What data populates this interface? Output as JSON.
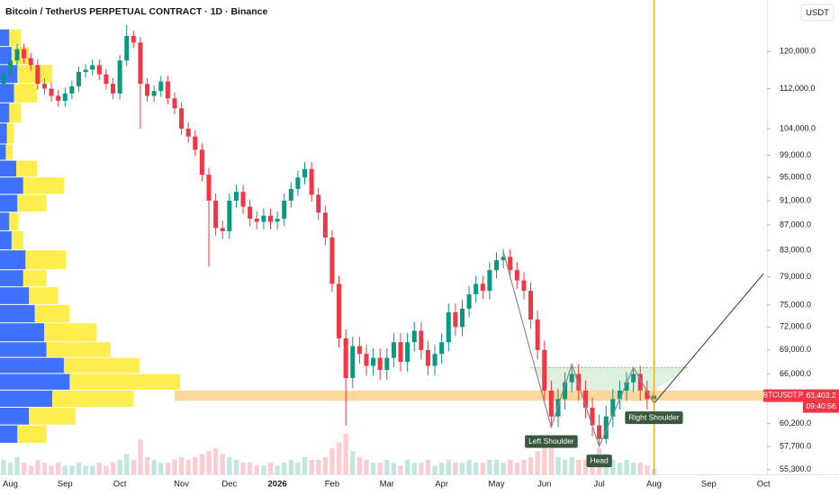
{
  "chart_data": {
    "type": "candlestick",
    "title": "Bitcoin / TetherUS PERPETUAL CONTRACT · 1D · Binance",
    "unit": "USDT",
    "log_scale": true,
    "grid": false,
    "colors": {
      "up": "#089981",
      "down": "#f23645",
      "profile_buy": "#2962ff",
      "profile_sell": "#ffeb3b",
      "zone": "#ffb74d",
      "pattern": "#8a8a8a",
      "projection": "#333333",
      "current": "#ff9800",
      "area": "#c8e6c9",
      "label_bg": "#38593f"
    },
    "categories": [
      null,
      "Aug",
      null,
      null,
      null,
      null,
      null,
      null,
      null,
      "Sep",
      null,
      null,
      null,
      null,
      null,
      null,
      null,
      "Oct",
      null,
      null,
      null,
      null,
      null,
      null,
      null,
      null,
      "Nov",
      null,
      null,
      null,
      null,
      null,
      null,
      "Dec",
      null,
      null,
      null,
      null,
      null,
      null,
      "2026",
      null,
      null,
      null,
      null,
      null,
      null,
      null,
      "Feb",
      null,
      null,
      null,
      null,
      null,
      null,
      null,
      "Mar",
      null,
      null,
      null,
      null,
      null,
      null,
      null,
      "Apr",
      null,
      null,
      null,
      null,
      null,
      null,
      null,
      "May",
      null,
      null,
      null,
      null,
      null,
      null,
      "Jun",
      null,
      null,
      null,
      null,
      null,
      null,
      null,
      "Jul",
      null,
      null,
      null,
      null,
      null,
      null,
      null,
      "Aug",
      null,
      null,
      null,
      null,
      null,
      null,
      null,
      "Sep",
      null,
      null,
      null,
      null,
      null,
      null,
      null,
      "Oct"
    ],
    "open": [
      113000,
      115000,
      118000,
      120500,
      118500,
      117000,
      113000,
      112000,
      110500,
      109500,
      111000,
      112500,
      115500,
      116000,
      117000,
      115000,
      113000,
      111000,
      118000,
      123500,
      122000,
      113000,
      110500,
      111500,
      113500,
      110000,
      108000,
      104000,
      102500,
      100000,
      95500,
      91000,
      86500,
      86000,
      91000,
      92500,
      90000,
      88000,
      87500,
      88500,
      87500,
      88000,
      91000,
      93000,
      95000,
      96500,
      92000,
      89000,
      85000,
      78000,
      70500,
      65500,
      69500,
      68500,
      67000,
      68000,
      66500,
      68000,
      70000,
      67500,
      70000,
      71500,
      69000,
      67000,
      68500,
      70000,
      74000,
      72000,
      74500,
      76500,
      78000,
      77000,
      80000,
      81500,
      82000,
      80000,
      78500,
      77000,
      73000,
      69000,
      64000,
      61000,
      63000,
      65000,
      66000,
      64000,
      62000,
      60000,
      58500,
      61000,
      63000,
      64000,
      65000,
      66000,
      64000,
      63000,
      null,
      null,
      null,
      null,
      null,
      null,
      null,
      null,
      null,
      null,
      null,
      null,
      null,
      null,
      null,
      null
    ],
    "high": [
      116200,
      119200,
      121700,
      121700,
      119700,
      118200,
      114200,
      113200,
      111700,
      112200,
      113700,
      116700,
      117200,
      118200,
      118200,
      116200,
      114200,
      119200,
      126000,
      124700,
      123200,
      114200,
      112700,
      114700,
      114700,
      111200,
      109200,
      105200,
      103700,
      101200,
      96700,
      92200,
      87700,
      92200,
      93700,
      93700,
      91200,
      89200,
      89700,
      89700,
      89200,
      92200,
      94200,
      96200,
      97700,
      97700,
      93200,
      90200,
      86200,
      79200,
      71700,
      70700,
      70700,
      69700,
      69200,
      69200,
      69200,
      71200,
      71200,
      71200,
      72700,
      72700,
      70200,
      69700,
      71200,
      75200,
      75200,
      75700,
      77700,
      79200,
      79200,
      81200,
      82700,
      83200,
      83200,
      81200,
      79700,
      78200,
      74200,
      70200,
      65200,
      64200,
      66200,
      67200,
      67200,
      65200,
      63200,
      61200,
      62200,
      64200,
      65200,
      66200,
      66800,
      67000,
      65200,
      64400,
      null,
      null,
      null,
      null,
      null,
      null,
      null,
      null,
      null,
      null,
      null,
      null,
      null,
      null,
      null,
      null
    ],
    "low": [
      111800,
      113800,
      116800,
      117300,
      115800,
      111800,
      110800,
      109300,
      108300,
      108300,
      109800,
      111300,
      114300,
      114800,
      113800,
      111800,
      109800,
      109800,
      116800,
      120800,
      104000,
      109300,
      109300,
      110300,
      108800,
      106800,
      102800,
      101300,
      98800,
      94300,
      80500,
      85300,
      84800,
      84800,
      89800,
      88800,
      86800,
      86300,
      86300,
      86300,
      86300,
      86800,
      89800,
      91800,
      93800,
      90800,
      87800,
      83800,
      76800,
      69300,
      60000,
      64300,
      67300,
      65800,
      65800,
      65300,
      65300,
      66800,
      66300,
      66300,
      68800,
      67800,
      65800,
      65800,
      67300,
      68800,
      70800,
      70800,
      73300,
      75300,
      75800,
      75800,
      78800,
      80300,
      78800,
      77300,
      75800,
      71800,
      67800,
      62800,
      59800,
      59800,
      61800,
      63800,
      62800,
      60800,
      58800,
      57700,
      58000,
      59800,
      61800,
      62800,
      63800,
      62800,
      61800,
      62500,
      null,
      null,
      null,
      null,
      null,
      null,
      null,
      null,
      null,
      null,
      null,
      null,
      null,
      null,
      null,
      null
    ],
    "close": [
      115000,
      118000,
      120500,
      118500,
      117000,
      113000,
      112000,
      110500,
      109500,
      111000,
      112500,
      115500,
      116000,
      117000,
      115000,
      113000,
      111000,
      118000,
      123500,
      122000,
      113000,
      110500,
      111500,
      113500,
      110000,
      108000,
      104000,
      102500,
      100000,
      95500,
      91000,
      86500,
      86000,
      91000,
      92500,
      90000,
      88000,
      87500,
      88500,
      87500,
      88000,
      91000,
      93000,
      95000,
      96500,
      92000,
      89000,
      85000,
      78000,
      70500,
      65500,
      69500,
      68500,
      67000,
      68000,
      66500,
      68000,
      70000,
      67500,
      70000,
      71500,
      69000,
      67000,
      68500,
      70000,
      74000,
      72000,
      74500,
      76500,
      78000,
      77000,
      80000,
      81500,
      82000,
      80000,
      78500,
      77000,
      73000,
      69000,
      64000,
      61000,
      63000,
      65000,
      66000,
      64000,
      62000,
      60000,
      58500,
      61000,
      63000,
      64000,
      65000,
      66000,
      64000,
      63000,
      63403.2,
      null,
      null,
      null,
      null,
      null,
      null,
      null,
      null,
      null,
      null,
      null,
      null,
      null,
      null,
      null,
      null
    ],
    "volume": [
      5,
      4,
      6,
      4,
      3,
      5,
      4,
      3,
      4,
      3,
      3,
      4,
      3,
      3,
      4,
      3,
      4,
      5,
      7,
      5,
      12,
      6,
      5,
      4,
      4,
      5,
      6,
      5,
      6,
      7,
      8,
      9,
      7,
      6,
      5,
      4,
      4,
      3,
      3,
      4,
      3,
      4,
      5,
      4,
      6,
      5,
      5,
      6,
      9,
      11,
      14,
      8,
      6,
      5,
      4,
      4,
      5,
      4,
      3,
      5,
      4,
      4,
      5,
      3,
      4,
      5,
      4,
      4,
      5,
      4,
      4,
      5,
      5,
      4,
      5,
      4,
      5,
      6,
      8,
      10,
      9,
      6,
      5,
      6,
      5,
      5,
      6,
      9,
      7,
      5,
      4,
      5,
      4,
      4,
      3,
      2,
      null,
      null,
      null,
      null,
      null,
      null,
      null,
      null,
      null,
      null,
      null,
      null,
      null,
      null,
      null,
      null
    ],
    "ylim": [
      54800,
      132000
    ],
    "yticks": [
      {
        "value": 55300,
        "label": "55,300.0"
      },
      {
        "value": 57700,
        "label": "57,700.0"
      },
      {
        "value": 60200,
        "label": "60,200.0"
      },
      {
        "value": 66000,
        "label": "66,000.0"
      },
      {
        "value": 69000,
        "label": "69,000.0"
      },
      {
        "value": 72000,
        "label": "72,000.0"
      },
      {
        "value": 75000,
        "label": "75,000.0"
      },
      {
        "value": 79000,
        "label": "79,000.0"
      },
      {
        "value": 83000,
        "label": "83,000.0"
      },
      {
        "value": 87000,
        "label": "87,000.0"
      },
      {
        "value": 91000,
        "label": "91,000.0"
      },
      {
        "value": 95000,
        "label": "95,000.0"
      },
      {
        "value": 99000,
        "label": "99,000.0"
      },
      {
        "value": 104000,
        "label": "104,000.0"
      },
      {
        "value": 112000,
        "label": "112,000.0"
      },
      {
        "value": 120000,
        "label": "120,000.0"
      }
    ],
    "volume_profile": {
      "levels": [
        58000,
        60000,
        62000,
        64000,
        66000,
        68000,
        70000,
        72500,
        75000,
        77500,
        80000,
        83000,
        86000,
        89000,
        92000,
        95000,
        98000,
        101000,
        105000,
        109000,
        113000,
        117000,
        121000,
        125000
      ],
      "buy": [
        15,
        25,
        45,
        60,
        55,
        40,
        38,
        30,
        25,
        20,
        22,
        10,
        8,
        15,
        20,
        14,
        5,
        6,
        8,
        12,
        15,
        10,
        8
      ],
      "sell": [
        25,
        40,
        70,
        95,
        65,
        55,
        45,
        30,
        25,
        20,
        35,
        10,
        8,
        25,
        35,
        18,
        6,
        6,
        10,
        20,
        30,
        15,
        10
      ]
    },
    "zone": {
      "low": 62800,
      "high": 64000,
      "from": 25
    },
    "neckline_area": {
      "top": 66800,
      "bottom": 64000,
      "from": 77,
      "to": 100
    },
    "pattern": {
      "points": [
        {
          "at": 73,
          "price": 82800
        },
        {
          "at": 80,
          "price": 59800,
          "label": "Left Shoulder"
        },
        {
          "at": 83,
          "price": 67200
        },
        {
          "at": 87,
          "price": 57700,
          "label": "Head"
        },
        {
          "at": 92,
          "price": 66800
        },
        {
          "at": 95,
          "price": 62500,
          "label": "Right Shoulder"
        }
      ],
      "projection": {
        "at": 111,
        "price": 79500
      }
    },
    "last_price": {
      "name": "BTCUSDT.P",
      "label": "63,403.2",
      "countdown": "09:40:56"
    }
  }
}
